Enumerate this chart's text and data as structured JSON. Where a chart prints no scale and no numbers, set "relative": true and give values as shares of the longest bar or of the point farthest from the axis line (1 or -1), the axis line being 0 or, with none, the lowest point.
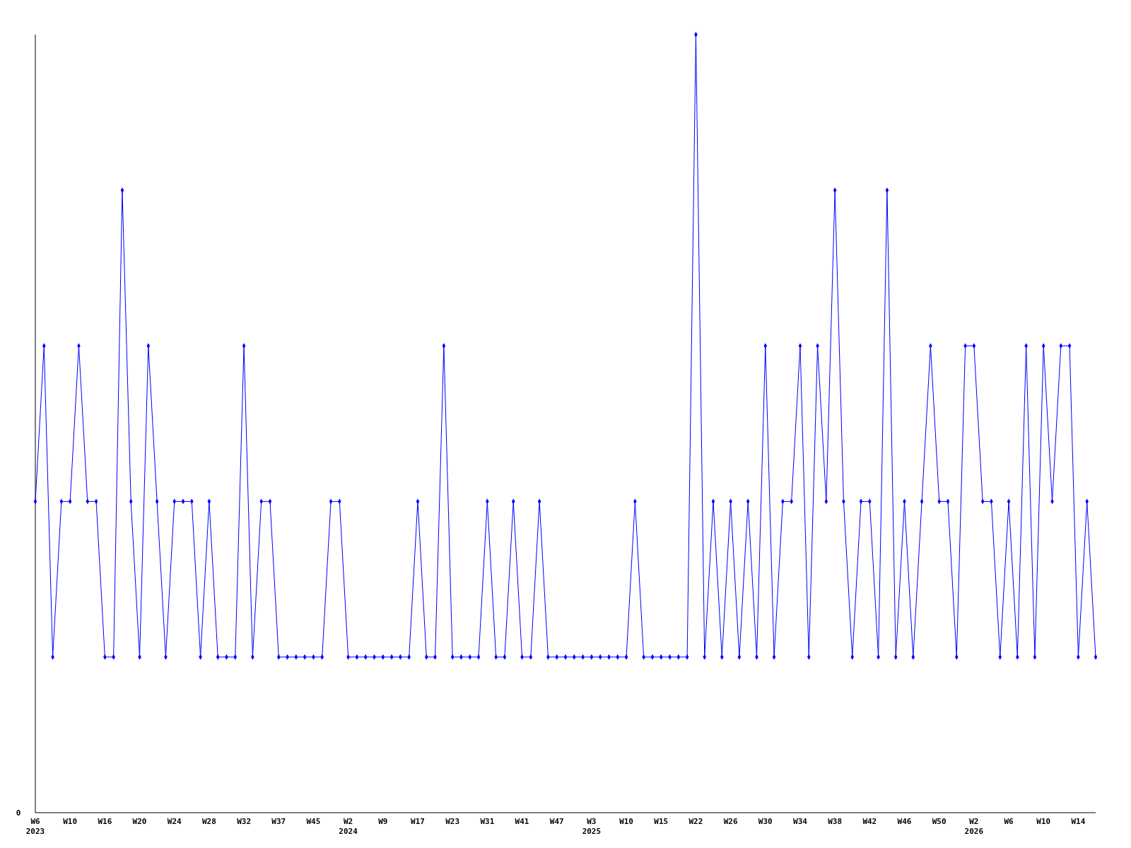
{
  "chart_data": {
    "type": "line",
    "relative": true,
    "marker": "diamond",
    "line_style": "solid",
    "annotations": [
      "0"
    ],
    "categories": [
      "W6\n2023",
      null,
      null,
      null,
      "W10",
      null,
      null,
      null,
      "W16",
      null,
      null,
      null,
      "W20",
      null,
      null,
      null,
      "W24",
      null,
      null,
      null,
      "W28",
      null,
      null,
      null,
      "W32",
      null,
      null,
      null,
      "W37",
      null,
      null,
      null,
      "W45",
      null,
      null,
      null,
      "W2\n2024",
      null,
      null,
      null,
      "W9",
      null,
      null,
      null,
      "W17",
      null,
      null,
      null,
      "W23",
      null,
      null,
      null,
      "W31",
      null,
      null,
      null,
      "W41",
      null,
      null,
      null,
      "W47",
      null,
      null,
      null,
      "W3\n2025",
      null,
      null,
      null,
      "W10",
      null,
      null,
      null,
      "W15",
      null,
      null,
      null,
      "W22",
      null,
      null,
      null,
      "W26",
      null,
      null,
      null,
      "W30",
      null,
      null,
      null,
      "W34",
      null,
      null,
      null,
      "W38",
      null,
      null,
      null,
      "W42",
      null,
      null,
      null,
      "W46",
      null,
      null,
      null,
      "W50",
      null,
      null,
      null,
      "W2\n2026",
      null,
      null,
      null,
      "W6",
      null,
      null,
      null,
      "W10",
      null,
      null,
      null,
      "W14",
      null,
      null
    ],
    "series": [
      {
        "color": "#0000ff",
        "values": [
          0.4,
          0.6,
          0.2,
          0.4,
          0.4,
          0.6,
          0.4,
          0.4,
          0.2,
          0.2,
          0.8,
          0.4,
          0.2,
          0.6,
          0.4,
          0.2,
          0.4,
          0.4,
          0.4,
          0.2,
          0.4,
          0.2,
          0.2,
          0.2,
          0.6,
          0.2,
          0.4,
          0.4,
          0.2,
          0.2,
          0.2,
          0.2,
          0.2,
          0.2,
          0.4,
          0.4,
          0.2,
          0.2,
          0.2,
          0.2,
          0.2,
          0.2,
          0.2,
          0.2,
          0.4,
          0.2,
          0.2,
          0.6,
          0.2,
          0.2,
          0.2,
          0.2,
          0.4,
          0.2,
          0.2,
          0.4,
          0.2,
          0.2,
          0.4,
          0.2,
          0.2,
          0.2,
          0.2,
          0.2,
          0.2,
          0.2,
          0.2,
          0.2,
          0.2,
          0.4,
          0.2,
          0.2,
          0.2,
          0.2,
          0.2,
          0.2,
          1,
          0.2,
          0.4,
          0.2,
          0.4,
          0.2,
          0.4,
          0.2,
          0.6,
          0.2,
          0.4,
          0.4,
          0.6,
          0.2,
          0.6,
          0.4,
          0.8,
          0.4,
          0.2,
          0.4,
          0.4,
          0.2,
          0.8,
          0.2,
          0.4,
          0.2,
          0.4,
          0.6,
          0.4,
          0.4,
          0.2,
          0.6,
          0.6,
          0.4,
          0.4,
          0.2,
          0.4,
          0.2,
          0.6,
          0.2,
          0.6,
          0.4,
          0.6,
          0.6,
          0.2,
          0.4,
          0.2
        ]
      }
    ]
  }
}
